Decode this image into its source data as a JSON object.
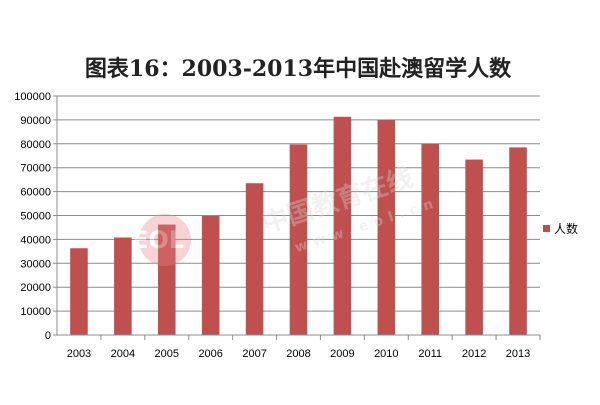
{
  "chart_data": {
    "type": "bar",
    "title": "图表16：2003-2013年中国赴澳留学人数",
    "categories": [
      "2003",
      "2004",
      "2005",
      "2006",
      "2007",
      "2008",
      "2009",
      "2010",
      "2011",
      "2012",
      "2013"
    ],
    "series": [
      {
        "name": "人数",
        "values": [
          36300,
          40800,
          46200,
          49800,
          63500,
          79700,
          91300,
          90000,
          80000,
          73400,
          78500
        ]
      }
    ],
    "ylim": [
      0,
      100000
    ],
    "y_ticks": [
      "0",
      "10000",
      "20000",
      "30000",
      "40000",
      "50000",
      "60000",
      "70000",
      "80000",
      "90000",
      "100000"
    ],
    "grid": true,
    "legend_position": "right",
    "bar_color": "#c0504d"
  },
  "watermark": {
    "brand": "中国教育在线",
    "url": "www.eol.cn",
    "logo": "EOL"
  }
}
